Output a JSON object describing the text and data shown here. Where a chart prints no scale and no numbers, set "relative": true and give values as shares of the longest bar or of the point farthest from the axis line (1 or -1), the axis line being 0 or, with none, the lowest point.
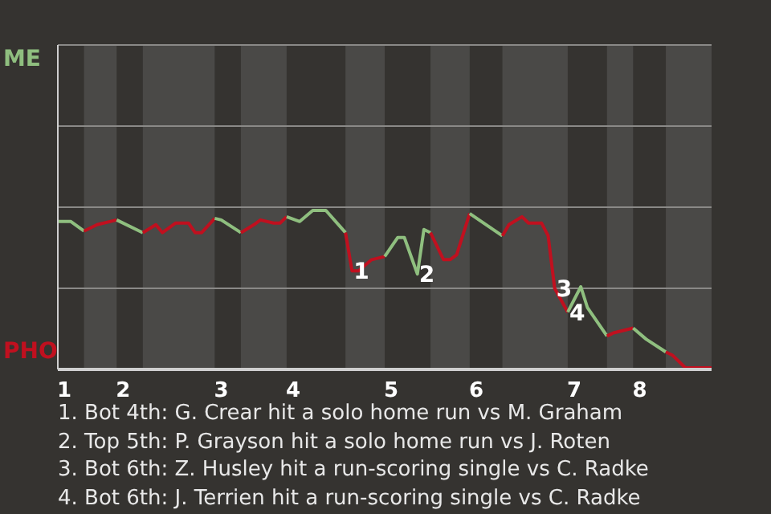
{
  "chart_data": {
    "type": "line",
    "relative": true,
    "categories": [
      null,
      "1",
      null,
      null,
      null,
      null,
      null,
      null,
      null,
      null,
      "2",
      null,
      null,
      null,
      null,
      null,
      null,
      null,
      null,
      null,
      null,
      null,
      null,
      null,
      null,
      "3",
      null,
      null,
      null,
      null,
      null,
      null,
      null,
      null,
      null,
      null,
      "4",
      null,
      null,
      null,
      null,
      null,
      null,
      null,
      null,
      null,
      null,
      null,
      null,
      null,
      null,
      "5",
      null,
      null,
      null,
      null,
      null,
      null,
      null,
      null,
      null,
      null,
      null,
      null,
      "6",
      null,
      null,
      null,
      null,
      null,
      null,
      null,
      null,
      null,
      null,
      null,
      null,
      null,
      null,
      "7",
      null,
      null,
      null,
      null,
      null,
      null,
      null,
      null,
      null,
      "8",
      null,
      null,
      null,
      null,
      null,
      null,
      null,
      null,
      null,
      null,
      null
    ],
    "series": [
      {
        "color": "#8fbf7f",
        "values": [
          0.93,
          null,
          0.93,
          null,
          0.87,
          null,
          null,
          null,
          null,
          null,
          null,
          null,
          null,
          null,
          null,
          null,
          null,
          null,
          null,
          null,
          null,
          null,
          null,
          null,
          null,
          null,
          null,
          null,
          null,
          null,
          null,
          null,
          null,
          null,
          null,
          null,
          null,
          null,
          null,
          null,
          null,
          null,
          null,
          null,
          null,
          null,
          null,
          null,
          null,
          null,
          null,
          null,
          null,
          null,
          null,
          null,
          null,
          null,
          null,
          null,
          null,
          null,
          null,
          null,
          null,
          null,
          null,
          null,
          null,
          null,
          null,
          null,
          null,
          null,
          null,
          null,
          null,
          null,
          null,
          null,
          null,
          null,
          null,
          null,
          null,
          null,
          null,
          null,
          null,
          null,
          null,
          null,
          null,
          null,
          null,
          null,
          null,
          null,
          null,
          null,
          null
        ]
      },
      {
        "color": "#c0101f",
        "values": [
          null,
          null,
          null,
          null,
          0.87,
          null,
          0.91,
          null,
          null,
          0.94,
          null,
          null,
          null,
          null,
          null,
          null,
          null,
          null,
          null,
          null,
          null,
          null,
          null,
          null,
          null,
          null,
          null,
          null,
          null,
          null,
          null,
          null,
          null,
          null,
          null,
          null,
          null,
          null,
          null,
          null,
          null,
          null,
          null,
          null,
          null,
          null,
          null,
          null,
          null,
          null,
          null,
          null,
          null,
          null,
          null,
          null,
          null,
          null,
          null,
          null,
          null,
          null,
          null,
          null,
          null,
          null,
          null,
          null,
          null,
          null,
          null,
          null,
          null,
          null,
          null,
          null,
          null,
          null,
          null,
          null,
          null,
          null,
          null,
          null,
          null,
          null,
          null,
          null,
          null,
          null,
          null,
          null,
          null,
          null,
          null,
          null,
          null,
          null,
          null,
          null,
          null
        ]
      },
      {
        "color": "#8fbf7f",
        "values": [
          null,
          null,
          null,
          null,
          null,
          null,
          null,
          null,
          null,
          0.94,
          null,
          null,
          null,
          0.86,
          null,
          null,
          null,
          null,
          null,
          null,
          null,
          null,
          null,
          null,
          null,
          null,
          null,
          null,
          null,
          null,
          null,
          null,
          null,
          null,
          null,
          null,
          null,
          null,
          null,
          null,
          null,
          null,
          null,
          null,
          null,
          null,
          null,
          null,
          null,
          null,
          null,
          null,
          null,
          null,
          null,
          null,
          null,
          null,
          null,
          null,
          null,
          null,
          null,
          null,
          null,
          null,
          null,
          null,
          null,
          null,
          null,
          null,
          null,
          null,
          null,
          null,
          null,
          null,
          null,
          null,
          null,
          null,
          null,
          null,
          null,
          null,
          null,
          null,
          null,
          null,
          null,
          null,
          null,
          null,
          null,
          null,
          null,
          null,
          null,
          null,
          null
        ]
      },
      {
        "color": "#c0101f",
        "values": [
          null,
          null,
          null,
          null,
          null,
          null,
          null,
          null,
          null,
          null,
          null,
          null,
          null,
          0.86,
          null,
          0.91,
          0.86,
          null,
          0.92,
          null,
          0.92,
          0.86,
          0.86,
          null,
          0.95,
          null,
          null,
          null,
          null,
          null,
          null,
          null,
          null,
          null,
          null,
          null,
          null,
          null,
          null,
          null,
          null,
          null,
          null,
          null,
          null,
          null,
          null,
          null,
          null,
          null,
          null,
          null,
          null,
          null,
          null,
          null,
          null,
          null,
          null,
          null,
          null,
          null,
          null,
          null,
          null,
          null,
          null,
          null,
          null,
          null,
          null,
          null,
          null,
          null,
          null,
          null,
          null,
          null,
          null,
          null,
          null,
          null,
          null,
          null,
          null,
          null,
          null,
          null,
          null,
          null,
          null,
          null,
          null,
          null,
          null,
          null,
          null,
          null,
          null,
          null,
          null
        ]
      },
      {
        "color": "#8fbf7f",
        "values": [
          null,
          null,
          null,
          null,
          null,
          null,
          null,
          null,
          null,
          null,
          null,
          null,
          null,
          null,
          null,
          null,
          null,
          null,
          null,
          null,
          null,
          null,
          null,
          null,
          0.95,
          0.94,
          null,
          null,
          0.86,
          null,
          null,
          null,
          null,
          null,
          null,
          null,
          null,
          null,
          null,
          null,
          null,
          null,
          null,
          null,
          null,
          null,
          null,
          null,
          null,
          null,
          null,
          null,
          null,
          null,
          null,
          null,
          null,
          null,
          null,
          null,
          null,
          null,
          null,
          null,
          null,
          null,
          null,
          null,
          null,
          null,
          null,
          null,
          null,
          null,
          null,
          null,
          null,
          null,
          null,
          null,
          null,
          null,
          null,
          null,
          null,
          null,
          null,
          null,
          null,
          null,
          null,
          null,
          null,
          null,
          null,
          null,
          null,
          null,
          null,
          null,
          null
        ]
      },
      {
        "color": "#c0101f",
        "values": [
          null,
          null,
          null,
          null,
          null,
          null,
          null,
          null,
          null,
          null,
          null,
          null,
          null,
          null,
          null,
          null,
          null,
          null,
          null,
          null,
          null,
          null,
          null,
          null,
          null,
          null,
          null,
          null,
          0.86,
          null,
          0.91,
          0.94,
          null,
          0.92,
          0.92,
          0.96,
          null,
          null,
          null,
          null,
          null,
          null,
          null,
          null,
          null,
          null,
          null,
          null,
          null,
          null,
          null,
          null,
          null,
          null,
          null,
          null,
          null,
          null,
          null,
          null,
          null,
          null,
          null,
          null,
          null,
          null,
          null,
          null,
          null,
          null,
          null,
          null,
          null,
          null,
          null,
          null,
          null,
          null,
          null,
          null,
          null,
          null,
          null,
          null,
          null,
          null,
          null,
          null,
          null,
          null,
          null,
          null,
          null,
          null,
          null,
          null,
          null,
          null,
          null,
          null,
          null
        ]
      },
      {
        "color": "#8fbf7f",
        "values": [
          null,
          null,
          null,
          null,
          null,
          null,
          null,
          null,
          null,
          null,
          null,
          null,
          null,
          null,
          null,
          null,
          null,
          null,
          null,
          null,
          null,
          null,
          null,
          null,
          null,
          null,
          null,
          null,
          null,
          null,
          null,
          null,
          null,
          null,
          null,
          0.96,
          null,
          0.93,
          null,
          1,
          null,
          1,
          null,
          null,
          0.86,
          null,
          null,
          null,
          null,
          null,
          null,
          null,
          null,
          null,
          null,
          null,
          null,
          null,
          null,
          null,
          null,
          null,
          null,
          null,
          null,
          null,
          null,
          null,
          null,
          null,
          null,
          null,
          null,
          null,
          null,
          null,
          null,
          null,
          null,
          null,
          null,
          null,
          null,
          null,
          null,
          null,
          null,
          null,
          null,
          null,
          null,
          null,
          null,
          null,
          null,
          null,
          null,
          null,
          null,
          null,
          null
        ]
      },
      {
        "color": "#c0101f",
        "values": [
          null,
          null,
          null,
          null,
          null,
          null,
          null,
          null,
          null,
          null,
          null,
          null,
          null,
          null,
          null,
          null,
          null,
          null,
          null,
          null,
          null,
          null,
          null,
          null,
          null,
          null,
          null,
          null,
          null,
          null,
          null,
          null,
          null,
          null,
          null,
          null,
          null,
          null,
          null,
          null,
          null,
          null,
          null,
          null,
          0.86,
          0.62,
          0.62,
          null,
          0.69,
          null,
          0.71,
          null,
          null,
          null,
          null,
          null,
          null,
          null,
          null,
          null,
          null,
          null,
          null,
          null,
          null,
          null,
          null,
          null,
          null,
          null,
          null,
          null,
          null,
          null,
          null,
          null,
          null,
          null,
          null,
          null,
          null,
          null,
          null,
          null,
          null,
          null,
          null,
          null,
          null,
          null,
          null,
          null,
          null,
          null,
          null,
          null,
          null,
          null,
          null,
          null,
          null
        ]
      },
      {
        "color": "#8fbf7f",
        "values": [
          null,
          null,
          null,
          null,
          null,
          null,
          null,
          null,
          null,
          null,
          null,
          null,
          null,
          null,
          null,
          null,
          null,
          null,
          null,
          null,
          null,
          null,
          null,
          null,
          null,
          null,
          null,
          null,
          null,
          null,
          null,
          null,
          null,
          null,
          null,
          null,
          null,
          null,
          null,
          null,
          null,
          null,
          null,
          null,
          null,
          null,
          null,
          null,
          null,
          null,
          0.71,
          null,
          0.83,
          0.83,
          null,
          0.6,
          0.88,
          0.86,
          null,
          null,
          null,
          null,
          null,
          null,
          null,
          null,
          null,
          null,
          null,
          null,
          null,
          null,
          null,
          null,
          null,
          null,
          null,
          null,
          null,
          null,
          null,
          null,
          null,
          null,
          null,
          null,
          null,
          null,
          null,
          null,
          null,
          null,
          null,
          null,
          null,
          null,
          null,
          null,
          null,
          null,
          null
        ]
      },
      {
        "color": "#c0101f",
        "values": [
          null,
          null,
          null,
          null,
          null,
          null,
          null,
          null,
          null,
          null,
          null,
          null,
          null,
          null,
          null,
          null,
          null,
          null,
          null,
          null,
          null,
          null,
          null,
          null,
          null,
          null,
          null,
          null,
          null,
          null,
          null,
          null,
          null,
          null,
          null,
          null,
          null,
          null,
          null,
          null,
          null,
          null,
          null,
          null,
          null,
          null,
          null,
          null,
          null,
          null,
          null,
          null,
          null,
          null,
          null,
          null,
          null,
          0.86,
          null,
          0.69,
          0.69,
          0.72,
          null,
          0.98,
          null,
          null,
          null,
          null,
          null,
          null,
          null,
          null,
          null,
          null,
          null,
          null,
          null,
          null,
          null,
          null,
          null,
          null,
          null,
          null,
          null,
          null,
          null,
          null,
          null,
          null,
          null,
          null,
          null,
          null,
          null,
          null,
          null,
          null,
          null,
          null,
          null
        ]
      },
      {
        "color": "#8fbf7f",
        "values": [
          null,
          null,
          null,
          null,
          null,
          null,
          null,
          null,
          null,
          null,
          null,
          null,
          null,
          null,
          null,
          null,
          null,
          null,
          null,
          null,
          null,
          null,
          null,
          null,
          null,
          null,
          null,
          null,
          null,
          null,
          null,
          null,
          null,
          null,
          null,
          null,
          null,
          null,
          null,
          null,
          null,
          null,
          null,
          null,
          null,
          null,
          null,
          null,
          null,
          null,
          null,
          null,
          null,
          null,
          null,
          null,
          null,
          null,
          null,
          null,
          null,
          null,
          null,
          0.98,
          null,
          null,
          null,
          null,
          0.84,
          null,
          null,
          null,
          null,
          null,
          null,
          null,
          null,
          null,
          null,
          null,
          null,
          null,
          null,
          null,
          null,
          null,
          null,
          null,
          null,
          null,
          null,
          null,
          null,
          null,
          null,
          null,
          null,
          null,
          null,
          null,
          null
        ]
      },
      {
        "color": "#c0101f",
        "values": [
          null,
          null,
          null,
          null,
          null,
          null,
          null,
          null,
          null,
          null,
          null,
          null,
          null,
          null,
          null,
          null,
          null,
          null,
          null,
          null,
          null,
          null,
          null,
          null,
          null,
          null,
          null,
          null,
          null,
          null,
          null,
          null,
          null,
          null,
          null,
          null,
          null,
          null,
          null,
          null,
          null,
          null,
          null,
          null,
          null,
          null,
          null,
          null,
          null,
          null,
          null,
          null,
          null,
          null,
          null,
          null,
          null,
          null,
          null,
          null,
          null,
          null,
          null,
          null,
          null,
          null,
          null,
          null,
          0.84,
          0.91,
          null,
          0.96,
          0.92,
          null,
          0.92,
          0.84,
          0.51,
          null,
          0.36,
          null,
          null,
          null,
          null,
          null,
          null,
          null,
          null,
          null,
          null,
          null,
          null,
          null,
          null,
          null,
          null,
          null,
          null,
          null,
          null,
          null,
          null
        ]
      },
      {
        "color": "#8fbf7f",
        "values": [
          null,
          null,
          null,
          null,
          null,
          null,
          null,
          null,
          null,
          null,
          null,
          null,
          null,
          null,
          null,
          null,
          null,
          null,
          null,
          null,
          null,
          null,
          null,
          null,
          null,
          null,
          null,
          null,
          null,
          null,
          null,
          null,
          null,
          null,
          null,
          null,
          null,
          null,
          null,
          null,
          null,
          null,
          null,
          null,
          null,
          null,
          null,
          null,
          null,
          null,
          null,
          null,
          null,
          null,
          null,
          null,
          null,
          null,
          null,
          null,
          null,
          null,
          null,
          null,
          null,
          null,
          null,
          null,
          null,
          null,
          null,
          null,
          null,
          null,
          null,
          null,
          null,
          null,
          0.36,
          null,
          0.52,
          0.39,
          null,
          null,
          0.21,
          null,
          null,
          null,
          null,
          null,
          null,
          null,
          null,
          null,
          null,
          null,
          null,
          null,
          null,
          null,
          null
        ]
      },
      {
        "color": "#c0101f",
        "values": [
          null,
          null,
          null,
          null,
          null,
          null,
          null,
          null,
          null,
          null,
          null,
          null,
          null,
          null,
          null,
          null,
          null,
          null,
          null,
          null,
          null,
          null,
          null,
          null,
          null,
          null,
          null,
          null,
          null,
          null,
          null,
          null,
          null,
          null,
          null,
          null,
          null,
          null,
          null,
          null,
          null,
          null,
          null,
          null,
          null,
          null,
          null,
          null,
          null,
          null,
          null,
          null,
          null,
          null,
          null,
          null,
          null,
          null,
          null,
          null,
          null,
          null,
          null,
          null,
          null,
          null,
          null,
          null,
          null,
          null,
          null,
          null,
          null,
          null,
          null,
          null,
          null,
          null,
          null,
          null,
          null,
          null,
          null,
          null,
          0.21,
          0.23,
          null,
          null,
          0.26,
          null,
          null,
          null,
          null,
          null,
          null,
          null,
          null,
          null,
          null,
          null,
          null
        ]
      },
      {
        "color": "#8fbf7f",
        "values": [
          null,
          null,
          null,
          null,
          null,
          null,
          null,
          null,
          null,
          null,
          null,
          null,
          null,
          null,
          null,
          null,
          null,
          null,
          null,
          null,
          null,
          null,
          null,
          null,
          null,
          null,
          null,
          null,
          null,
          null,
          null,
          null,
          null,
          null,
          null,
          null,
          null,
          null,
          null,
          null,
          null,
          null,
          null,
          null,
          null,
          null,
          null,
          null,
          null,
          null,
          null,
          null,
          null,
          null,
          null,
          null,
          null,
          null,
          null,
          null,
          null,
          null,
          null,
          null,
          null,
          null,
          null,
          null,
          null,
          null,
          null,
          null,
          null,
          null,
          null,
          null,
          null,
          null,
          null,
          null,
          null,
          null,
          null,
          null,
          null,
          null,
          null,
          null,
          0.26,
          null,
          0.19,
          null,
          null,
          0.11,
          null,
          null,
          null,
          null,
          null,
          null,
          null
        ]
      },
      {
        "color": "#c0101f",
        "values": [
          null,
          null,
          null,
          null,
          null,
          null,
          null,
          null,
          null,
          null,
          null,
          null,
          null,
          null,
          null,
          null,
          null,
          null,
          null,
          null,
          null,
          null,
          null,
          null,
          null,
          null,
          null,
          null,
          null,
          null,
          null,
          null,
          null,
          null,
          null,
          null,
          null,
          null,
          null,
          null,
          null,
          null,
          null,
          null,
          null,
          null,
          null,
          null,
          null,
          null,
          null,
          null,
          null,
          null,
          null,
          null,
          null,
          null,
          null,
          null,
          null,
          null,
          null,
          null,
          null,
          null,
          null,
          null,
          null,
          null,
          null,
          null,
          null,
          null,
          null,
          null,
          null,
          null,
          null,
          null,
          null,
          null,
          null,
          null,
          null,
          null,
          null,
          null,
          null,
          null,
          null,
          null,
          null,
          0.11,
          0.09,
          null,
          0.01,
          null,
          null,
          null,
          0.01
        ]
      }
    ],
    "ref_lines": [
      {
        "axis": "y",
        "value": 0.51,
        "color": "#8a8987"
      },
      {
        "axis": "y",
        "value": 1.02,
        "color": "#8a8987"
      },
      {
        "axis": "y",
        "value": 1.53,
        "color": "#8a8987"
      },
      {
        "axis": "y",
        "value": 2.04,
        "color": "#8a8987"
      }
    ],
    "annotations": [
      {
        "text": "1",
        "y": 0.62
      },
      {
        "text": "2",
        "y": 0.6
      },
      {
        "text": "3",
        "y": 0.51
      },
      {
        "text": "4",
        "y": 0.36
      },
      "ME",
      "PHO",
      "1. Bot 4th: G. Crear hit a solo home run vs M. Graham",
      "2. Top 5th: P. Grayson hit a solo home run vs J. Roten",
      "3. Bot 6th: Z. Husley hit a run-scoring single vs C. Radke",
      "4. Bot 6th: J. Terrien hit a run-scoring single vs C. Radke"
    ]
  }
}
